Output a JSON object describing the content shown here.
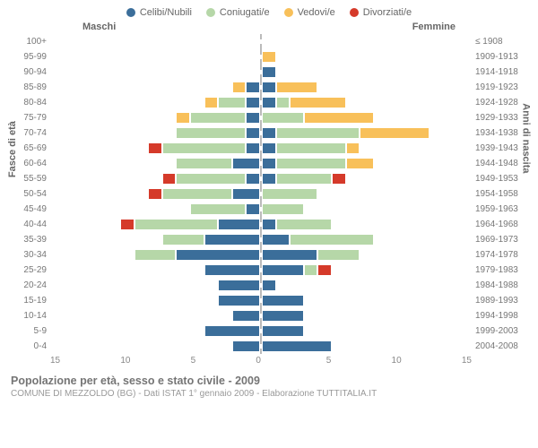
{
  "legend": [
    {
      "label": "Celibi/Nubili",
      "color": "#3b6e9a"
    },
    {
      "label": "Coniugati/e",
      "color": "#b6d7a8"
    },
    {
      "label": "Vedovi/e",
      "color": "#f8c05a"
    },
    {
      "label": "Divorziati/e",
      "color": "#d53a2a"
    }
  ],
  "headers": {
    "male": "Maschi",
    "female": "Femmine"
  },
  "axisTitles": {
    "left": "Fasce di età",
    "right": "Anni di nascita"
  },
  "xmax": 15,
  "xTicks": {
    "male": [
      15,
      10,
      5,
      0
    ],
    "female": [
      0,
      5,
      10,
      15
    ]
  },
  "colors": {
    "single": "#3b6e9a",
    "married": "#b6d7a8",
    "widowed": "#f8c05a",
    "divorced": "#d53a2a",
    "grid": "#e4e4e4",
    "centerline": "#bbb"
  },
  "footer": {
    "title": "Popolazione per età, sesso e stato civile - 2009",
    "sub": "COMUNE DI MEZZOLDO (BG) - Dati ISTAT 1° gennaio 2009 - Elaborazione TUTTITALIA.IT"
  },
  "rows": [
    {
      "age": "100+",
      "birth": "≤ 1908",
      "m": {
        "s": 0,
        "c": 0,
        "v": 0,
        "d": 0
      },
      "f": {
        "s": 0,
        "c": 0,
        "v": 0,
        "d": 0
      }
    },
    {
      "age": "95-99",
      "birth": "1909-1913",
      "m": {
        "s": 0,
        "c": 0,
        "v": 0,
        "d": 0
      },
      "f": {
        "s": 0,
        "c": 0,
        "v": 1,
        "d": 0
      }
    },
    {
      "age": "90-94",
      "birth": "1914-1918",
      "m": {
        "s": 0,
        "c": 0,
        "v": 0,
        "d": 0
      },
      "f": {
        "s": 1,
        "c": 0,
        "v": 0,
        "d": 0
      }
    },
    {
      "age": "85-89",
      "birth": "1919-1923",
      "m": {
        "s": 1,
        "c": 0,
        "v": 1,
        "d": 0
      },
      "f": {
        "s": 1,
        "c": 0,
        "v": 3,
        "d": 0
      }
    },
    {
      "age": "80-84",
      "birth": "1924-1928",
      "m": {
        "s": 1,
        "c": 2,
        "v": 1,
        "d": 0
      },
      "f": {
        "s": 1,
        "c": 1,
        "v": 4,
        "d": 0
      }
    },
    {
      "age": "75-79",
      "birth": "1929-1933",
      "m": {
        "s": 1,
        "c": 4,
        "v": 1,
        "d": 0
      },
      "f": {
        "s": 0,
        "c": 3,
        "v": 5,
        "d": 0
      }
    },
    {
      "age": "70-74",
      "birth": "1934-1938",
      "m": {
        "s": 1,
        "c": 5,
        "v": 0,
        "d": 0
      },
      "f": {
        "s": 1,
        "c": 6,
        "v": 5,
        "d": 0
      }
    },
    {
      "age": "65-69",
      "birth": "1939-1943",
      "m": {
        "s": 1,
        "c": 6,
        "v": 0,
        "d": 1
      },
      "f": {
        "s": 1,
        "c": 5,
        "v": 1,
        "d": 0
      }
    },
    {
      "age": "60-64",
      "birth": "1944-1948",
      "m": {
        "s": 2,
        "c": 4,
        "v": 0,
        "d": 0
      },
      "f": {
        "s": 1,
        "c": 5,
        "v": 2,
        "d": 0
      }
    },
    {
      "age": "55-59",
      "birth": "1949-1953",
      "m": {
        "s": 1,
        "c": 5,
        "v": 0,
        "d": 1
      },
      "f": {
        "s": 1,
        "c": 4,
        "v": 0,
        "d": 1
      }
    },
    {
      "age": "50-54",
      "birth": "1954-1958",
      "m": {
        "s": 2,
        "c": 5,
        "v": 0,
        "d": 1
      },
      "f": {
        "s": 0,
        "c": 4,
        "v": 0,
        "d": 0
      }
    },
    {
      "age": "45-49",
      "birth": "1959-1963",
      "m": {
        "s": 1,
        "c": 4,
        "v": 0,
        "d": 0
      },
      "f": {
        "s": 0,
        "c": 3,
        "v": 0,
        "d": 0
      }
    },
    {
      "age": "40-44",
      "birth": "1964-1968",
      "m": {
        "s": 3,
        "c": 6,
        "v": 0,
        "d": 1
      },
      "f": {
        "s": 1,
        "c": 4,
        "v": 0,
        "d": 0
      }
    },
    {
      "age": "35-39",
      "birth": "1969-1973",
      "m": {
        "s": 4,
        "c": 3,
        "v": 0,
        "d": 0
      },
      "f": {
        "s": 2,
        "c": 6,
        "v": 0,
        "d": 0
      }
    },
    {
      "age": "30-34",
      "birth": "1974-1978",
      "m": {
        "s": 6,
        "c": 3,
        "v": 0,
        "d": 0
      },
      "f": {
        "s": 4,
        "c": 3,
        "v": 0,
        "d": 0
      }
    },
    {
      "age": "25-29",
      "birth": "1979-1983",
      "m": {
        "s": 4,
        "c": 0,
        "v": 0,
        "d": 0
      },
      "f": {
        "s": 3,
        "c": 1,
        "v": 0,
        "d": 1
      }
    },
    {
      "age": "20-24",
      "birth": "1984-1988",
      "m": {
        "s": 3,
        "c": 0,
        "v": 0,
        "d": 0
      },
      "f": {
        "s": 1,
        "c": 0,
        "v": 0,
        "d": 0
      }
    },
    {
      "age": "15-19",
      "birth": "1989-1993",
      "m": {
        "s": 3,
        "c": 0,
        "v": 0,
        "d": 0
      },
      "f": {
        "s": 3,
        "c": 0,
        "v": 0,
        "d": 0
      }
    },
    {
      "age": "10-14",
      "birth": "1994-1998",
      "m": {
        "s": 2,
        "c": 0,
        "v": 0,
        "d": 0
      },
      "f": {
        "s": 3,
        "c": 0,
        "v": 0,
        "d": 0
      }
    },
    {
      "age": "5-9",
      "birth": "1999-2003",
      "m": {
        "s": 4,
        "c": 0,
        "v": 0,
        "d": 0
      },
      "f": {
        "s": 3,
        "c": 0,
        "v": 0,
        "d": 0
      }
    },
    {
      "age": "0-4",
      "birth": "2004-2008",
      "m": {
        "s": 2,
        "c": 0,
        "v": 0,
        "d": 0
      },
      "f": {
        "s": 5,
        "c": 0,
        "v": 0,
        "d": 0
      }
    }
  ]
}
